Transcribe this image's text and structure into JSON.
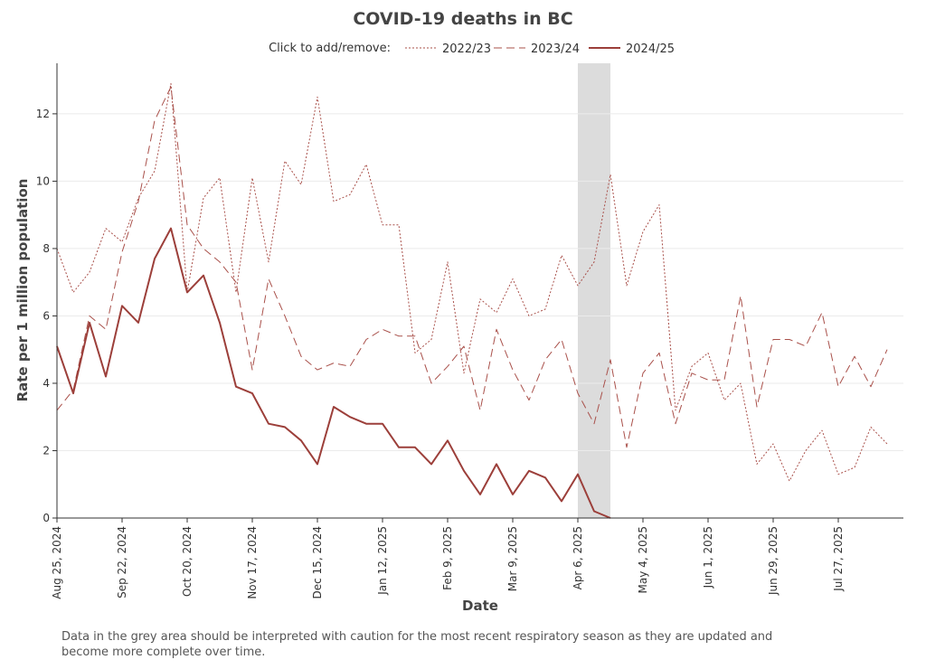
{
  "chart_data": {
    "type": "line",
    "title": "COVID-19 deaths in BC",
    "xlabel": "Date",
    "ylabel": "Rate per 1 million population",
    "legend_prompt": "Click to add/remove:",
    "legend_placement": "top-center",
    "ylim": [
      0,
      13.5
    ],
    "yticks": [
      0,
      2,
      4,
      6,
      8,
      10,
      12
    ],
    "xlim": [
      "2024-08-25",
      "2025-08-24"
    ],
    "xticks": [
      {
        "date": "2024-08-25",
        "label": "Aug 25, 2024"
      },
      {
        "date": "2024-09-22",
        "label": "Sep 22, 2024"
      },
      {
        "date": "2024-10-20",
        "label": "Oct 20, 2024"
      },
      {
        "date": "2024-11-17",
        "label": "Nov 17, 2024"
      },
      {
        "date": "2024-12-15",
        "label": "Dec 15, 2024"
      },
      {
        "date": "2025-01-12",
        "label": "Jan 12, 2025"
      },
      {
        "date": "2025-02-09",
        "label": "Feb 9, 2025"
      },
      {
        "date": "2025-03-09",
        "label": "Mar 9, 2025"
      },
      {
        "date": "2025-04-06",
        "label": "Apr 6, 2025"
      },
      {
        "date": "2025-05-04",
        "label": "May 4, 2025"
      },
      {
        "date": "2025-06-01",
        "label": "Jun 1, 2025"
      },
      {
        "date": "2025-06-29",
        "label": "Jun 29, 2025"
      },
      {
        "date": "2025-07-27",
        "label": "Jul 27, 2025"
      }
    ],
    "grid": true,
    "shaded_region": {
      "start": "2025-04-06",
      "end": "2025-04-20",
      "color": "#dcdcdc"
    },
    "x": [
      "2024-08-25",
      "2024-09-01",
      "2024-09-08",
      "2024-09-15",
      "2024-09-22",
      "2024-09-29",
      "2024-10-06",
      "2024-10-13",
      "2024-10-20",
      "2024-10-27",
      "2024-11-03",
      "2024-11-10",
      "2024-11-17",
      "2024-11-24",
      "2024-12-01",
      "2024-12-08",
      "2024-12-15",
      "2024-12-22",
      "2024-12-29",
      "2025-01-05",
      "2025-01-12",
      "2025-01-19",
      "2025-01-26",
      "2025-02-02",
      "2025-02-09",
      "2025-02-16",
      "2025-02-23",
      "2025-03-02",
      "2025-03-09",
      "2025-03-16",
      "2025-03-23",
      "2025-03-30",
      "2025-04-06",
      "2025-04-13",
      "2025-04-20",
      "2025-04-27",
      "2025-05-04",
      "2025-05-11",
      "2025-05-18",
      "2025-05-25",
      "2025-06-01",
      "2025-06-08",
      "2025-06-15",
      "2025-06-22",
      "2025-06-29",
      "2025-07-06",
      "2025-07-13",
      "2025-07-20",
      "2025-07-27",
      "2025-08-03",
      "2025-08-10",
      "2025-08-17",
      "2025-08-24"
    ],
    "series": [
      {
        "name": "2022/23",
        "dash": "dotted",
        "color": "#a9504a",
        "values": [
          8.0,
          6.7,
          7.3,
          8.6,
          8.2,
          9.5,
          10.3,
          12.9,
          6.7,
          9.5,
          10.1,
          6.7,
          10.1,
          7.6,
          10.6,
          9.9,
          12.5,
          9.4,
          9.6,
          10.5,
          8.7,
          8.7,
          4.9,
          5.3,
          7.6,
          4.3,
          6.5,
          6.1,
          7.1,
          6.0,
          6.2,
          7.8,
          6.9,
          7.6,
          10.2,
          6.9,
          8.5,
          9.3,
          3.2,
          4.5,
          4.9,
          3.5,
          4.0,
          1.6,
          2.2,
          1.1,
          2.0,
          2.6,
          1.3,
          1.5,
          2.7,
          2.2,
          null
        ]
      },
      {
        "name": "2023/24",
        "dash": "dashed",
        "color": "#a9504a",
        "values": [
          3.2,
          3.8,
          6.0,
          5.6,
          7.9,
          9.4,
          11.8,
          12.8,
          8.7,
          8.0,
          7.6,
          7.0,
          4.4,
          7.1,
          6.0,
          4.8,
          4.4,
          4.6,
          4.5,
          5.3,
          5.6,
          5.4,
          5.4,
          4.0,
          4.5,
          5.1,
          3.2,
          5.6,
          4.4,
          3.5,
          4.7,
          5.3,
          3.7,
          2.8,
          4.7,
          2.1,
          4.3,
          4.9,
          2.8,
          4.3,
          4.1,
          4.1,
          6.6,
          3.3,
          5.3,
          5.3,
          5.1,
          6.1,
          3.9,
          4.8,
          3.9,
          5.0,
          null
        ]
      },
      {
        "name": "2024/25",
        "dash": "solid",
        "color": "#9c3f3a",
        "values": [
          5.1,
          3.7,
          5.8,
          4.2,
          6.3,
          5.8,
          7.7,
          8.6,
          6.7,
          7.2,
          5.8,
          3.9,
          3.7,
          2.8,
          2.7,
          2.3,
          1.6,
          3.3,
          3.0,
          2.8,
          2.8,
          2.1,
          2.1,
          1.6,
          2.3,
          1.4,
          0.7,
          1.6,
          0.7,
          1.4,
          1.2,
          0.5,
          1.3,
          0.2,
          0.0,
          null,
          null,
          null,
          null,
          null,
          null,
          null,
          null,
          null,
          null,
          null,
          null,
          null,
          null,
          null,
          null,
          null,
          null
        ]
      }
    ]
  },
  "footnote": "Data in the grey area should be interpreted with caution for the most recent respiratory season as they are updated and become more complete over time."
}
